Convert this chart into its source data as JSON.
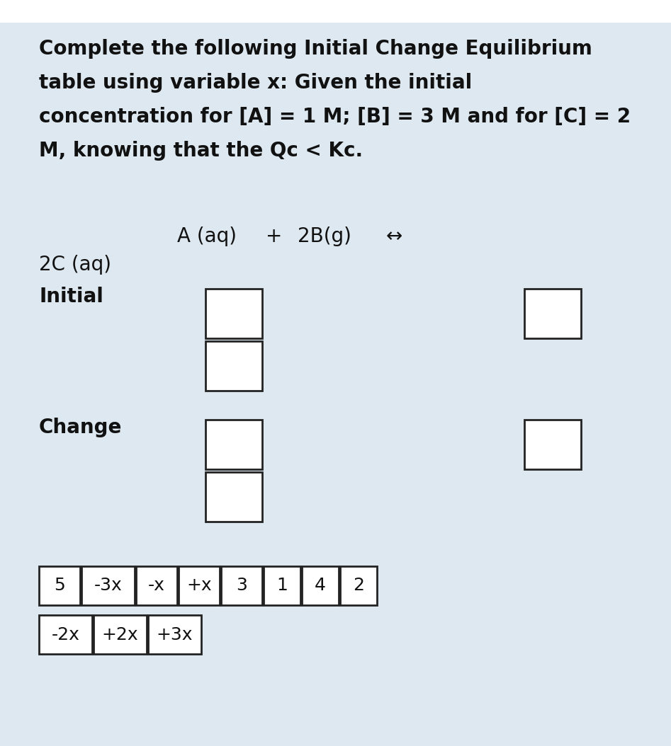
{
  "background_color": "#dde8f0",
  "title_lines": [
    "Complete the following Initial Change Equilibrium",
    "table using variable x: Given the initial",
    "concentration for [A] = 1 M; [B] = 3 M and for [C] = 2",
    "M, knowing that the Qc < Kc."
  ],
  "title_fontsize": 20,
  "title_fontweight": "bold",
  "eq_top_label": "A (aq)",
  "eq_plus": "+",
  "eq_right_label": "2B(g)",
  "eq_arrow": "↔",
  "eq_bottom_label": "2C (aq)",
  "row_initial": "Initial",
  "row_change": "Change",
  "answer_tokens_row1": [
    "5",
    "-3x",
    "-x",
    "+x",
    "3",
    "1",
    "4",
    "2"
  ],
  "answer_tokens_row2": [
    "-2x",
    "+2x",
    "+3x"
  ],
  "box_facecolor": "white",
  "box_edgecolor": "#222222",
  "text_color": "#111111",
  "font_family": "DejaVu Sans"
}
